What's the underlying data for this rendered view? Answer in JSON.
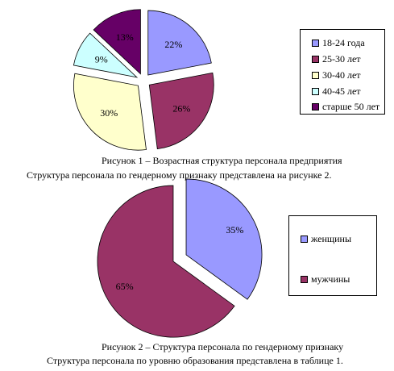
{
  "chart_data": [
    {
      "type": "pie",
      "title": "Рисунок 1 – Возрастная структура персонала предприятия",
      "slices": [
        {
          "label": "18-24 года",
          "value": 22,
          "value_label": "22%",
          "color": "#9999ff"
        },
        {
          "label": "25-30 лет",
          "value": 26,
          "value_label": "26%",
          "color": "#993366"
        },
        {
          "label": "30-40 лет",
          "value": 30,
          "value_label": "30%",
          "color": "#ffffcc"
        },
        {
          "label": "40-45 лет",
          "value": 9,
          "value_label": "9%",
          "color": "#ccffff"
        },
        {
          "label": "старше 50 лет",
          "value": 13,
          "value_label": "13%",
          "color": "#660066"
        }
      ],
      "legend_position": "right",
      "exploded": true
    },
    {
      "type": "pie",
      "title": "Рисунок 2 – Структура персонала по гендерному признаку",
      "slices": [
        {
          "label": "женщины",
          "value": 35,
          "value_label": "35%",
          "color": "#9999ff"
        },
        {
          "label": "мужчины",
          "value": 65,
          "value_label": "65%",
          "color": "#993366"
        }
      ],
      "legend_position": "right",
      "exploded": true
    }
  ],
  "text": {
    "caption1": "Рисунок 1 – Возрастная структура персонала предприятия",
    "paragraph1": "Структура персонала по гендерному признаку представлена на рисунке 2.",
    "caption2": "Рисунок 2 – Структура персонала по гендерному признаку",
    "paragraph2": "Структура персонала  по уровню образования представлена в таблице 1."
  }
}
